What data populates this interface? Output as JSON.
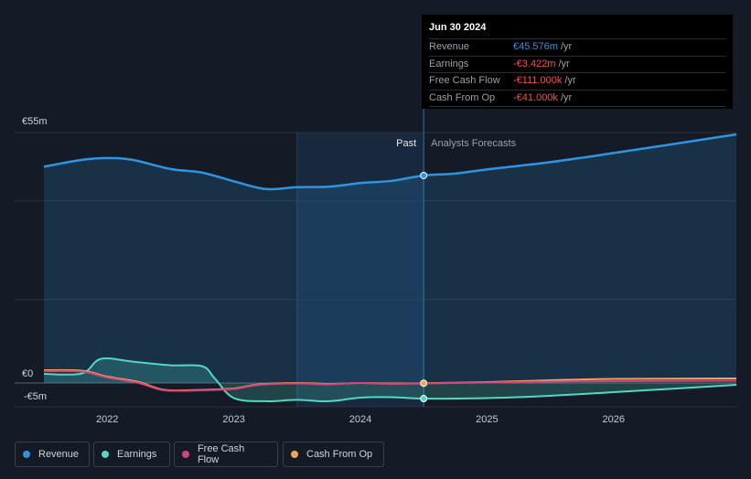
{
  "tooltip": {
    "date": "Jun 30 2024",
    "rows": [
      {
        "label": "Revenue",
        "value": "€45.576m",
        "unit": "/yr",
        "color": "#2f94e0"
      },
      {
        "label": "Earnings",
        "value": "-€3.422m",
        "unit": "/yr",
        "color": "#ff4d4d"
      },
      {
        "label": "Free Cash Flow",
        "value": "-€111.000k",
        "unit": "/yr",
        "color": "#ff4d4d"
      },
      {
        "label": "Cash From Op",
        "value": "-€41.000k",
        "unit": "/yr",
        "color": "#ff4d4d"
      }
    ]
  },
  "legend": [
    {
      "label": "Revenue",
      "color": "#2f94e0"
    },
    {
      "label": "Earnings",
      "color": "#4fd8c4"
    },
    {
      "label": "Free Cash Flow",
      "color": "#d0457e"
    },
    {
      "label": "Cash From Op",
      "color": "#f0a35a"
    }
  ],
  "chart_data": {
    "type": "line",
    "title": "",
    "y_tick_labels": [
      "€55m",
      "€0",
      "-€5m"
    ],
    "ylim": [
      -5,
      55
    ],
    "xlim": [
      2021.5,
      2026.97
    ],
    "x_ticks": [
      2022,
      2023,
      2024,
      2025,
      2026
    ],
    "x_tick_labels": [
      "2022",
      "2023",
      "2024",
      "2025",
      "2026"
    ],
    "past_label": "Past",
    "forecast_label": "Analysts Forecasts",
    "present_x": 2024.5,
    "forecast_band_start": 2023.5,
    "series": [
      {
        "name": "Revenue",
        "color": "#2f94e0",
        "area": true,
        "x": [
          2021.5,
          2021.8,
          2022.0,
          2022.2,
          2022.5,
          2022.75,
          2023.0,
          2023.25,
          2023.5,
          2023.75,
          2024.0,
          2024.25,
          2024.5,
          2024.75,
          2025.0,
          2025.5,
          2026.0,
          2026.5,
          2026.97
        ],
        "y": [
          47.5,
          49.0,
          49.4,
          49.0,
          47.0,
          46.2,
          44.3,
          42.6,
          43.0,
          43.1,
          43.9,
          44.4,
          45.576,
          46.0,
          46.9,
          48.5,
          50.5,
          52.6,
          54.6
        ]
      },
      {
        "name": "Earnings",
        "color": "#4fd8c4",
        "area": true,
        "x": [
          2021.5,
          2021.8,
          2021.95,
          2022.2,
          2022.5,
          2022.75,
          2022.85,
          2023.0,
          2023.25,
          2023.5,
          2023.75,
          2024.0,
          2024.25,
          2024.5,
          2025.0,
          2025.5,
          2026.0,
          2026.5,
          2026.97
        ],
        "y": [
          2.0,
          2.1,
          5.3,
          4.7,
          3.9,
          3.7,
          1.0,
          -3.3,
          -4.0,
          -3.7,
          -4.0,
          -3.2,
          -3.1,
          -3.422,
          -3.3,
          -2.8,
          -2.0,
          -1.2,
          -0.4
        ]
      },
      {
        "name": "Free Cash Flow",
        "color": "#d0457e",
        "area": false,
        "x": [
          2021.5,
          2021.8,
          2022.0,
          2022.25,
          2022.45,
          2022.75,
          2023.0,
          2023.2,
          2023.5,
          2023.75,
          2024.0,
          2024.25,
          2024.5,
          2025.0,
          2025.5,
          2026.0,
          2026.97
        ],
        "y": [
          2.6,
          2.5,
          1.2,
          0.0,
          -1.6,
          -1.6,
          -1.3,
          -0.4,
          -0.1,
          -0.3,
          0.0,
          -0.2,
          -0.111,
          0.1,
          0.3,
          0.4,
          0.5
        ]
      },
      {
        "name": "Cash From Op",
        "color": "#f0a35a",
        "area": false,
        "x": [
          2021.5,
          2021.8,
          2022.0,
          2022.25,
          2022.45,
          2022.75,
          2023.0,
          2023.2,
          2023.5,
          2023.75,
          2024.0,
          2024.25,
          2024.5,
          2025.0,
          2025.5,
          2026.0,
          2026.97
        ],
        "y": [
          2.8,
          2.7,
          1.4,
          0.2,
          -1.5,
          -1.5,
          -1.2,
          -0.3,
          0.0,
          -0.2,
          0.0,
          -0.1,
          -0.041,
          0.2,
          0.6,
          0.9,
          1.0
        ]
      }
    ]
  }
}
